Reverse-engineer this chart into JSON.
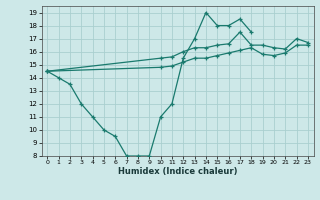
{
  "xlabel": "Humidex (Indice chaleur)",
  "bg_color": "#cde8e8",
  "line_color": "#1a7a6e",
  "grid_color": "#aacfcf",
  "xlim": [
    -0.5,
    23.5
  ],
  "ylim": [
    8,
    19.5
  ],
  "xticks": [
    0,
    1,
    2,
    3,
    4,
    5,
    6,
    7,
    8,
    9,
    10,
    11,
    12,
    13,
    14,
    15,
    16,
    17,
    18,
    19,
    20,
    21,
    22,
    23
  ],
  "yticks": [
    8,
    9,
    10,
    11,
    12,
    13,
    14,
    15,
    16,
    17,
    18,
    19
  ],
  "line1_x": [
    0,
    1,
    2,
    3,
    4,
    5,
    6,
    7,
    8,
    9,
    10,
    11,
    12,
    13,
    14,
    15,
    16,
    17,
    18
  ],
  "line1_y": [
    14.5,
    14.0,
    13.5,
    12.0,
    11.0,
    10.0,
    9.5,
    8.0,
    8.0,
    8.0,
    11.0,
    12.0,
    15.5,
    17.0,
    19.0,
    18.0,
    18.0,
    18.5,
    17.5
  ],
  "line2_x": [
    0,
    10,
    11,
    12,
    13,
    14,
    15,
    16,
    17,
    18,
    19,
    20,
    21,
    22,
    23
  ],
  "line2_y": [
    14.5,
    15.5,
    15.6,
    16.0,
    16.3,
    16.3,
    16.5,
    16.6,
    17.5,
    16.5,
    16.5,
    16.3,
    16.2,
    17.0,
    16.7
  ],
  "line3_x": [
    0,
    10,
    11,
    12,
    13,
    14,
    15,
    16,
    17,
    18,
    19,
    20,
    21,
    22,
    23
  ],
  "line3_y": [
    14.5,
    14.8,
    14.9,
    15.2,
    15.5,
    15.5,
    15.7,
    15.9,
    16.1,
    16.3,
    15.8,
    15.7,
    15.9,
    16.5,
    16.5
  ]
}
